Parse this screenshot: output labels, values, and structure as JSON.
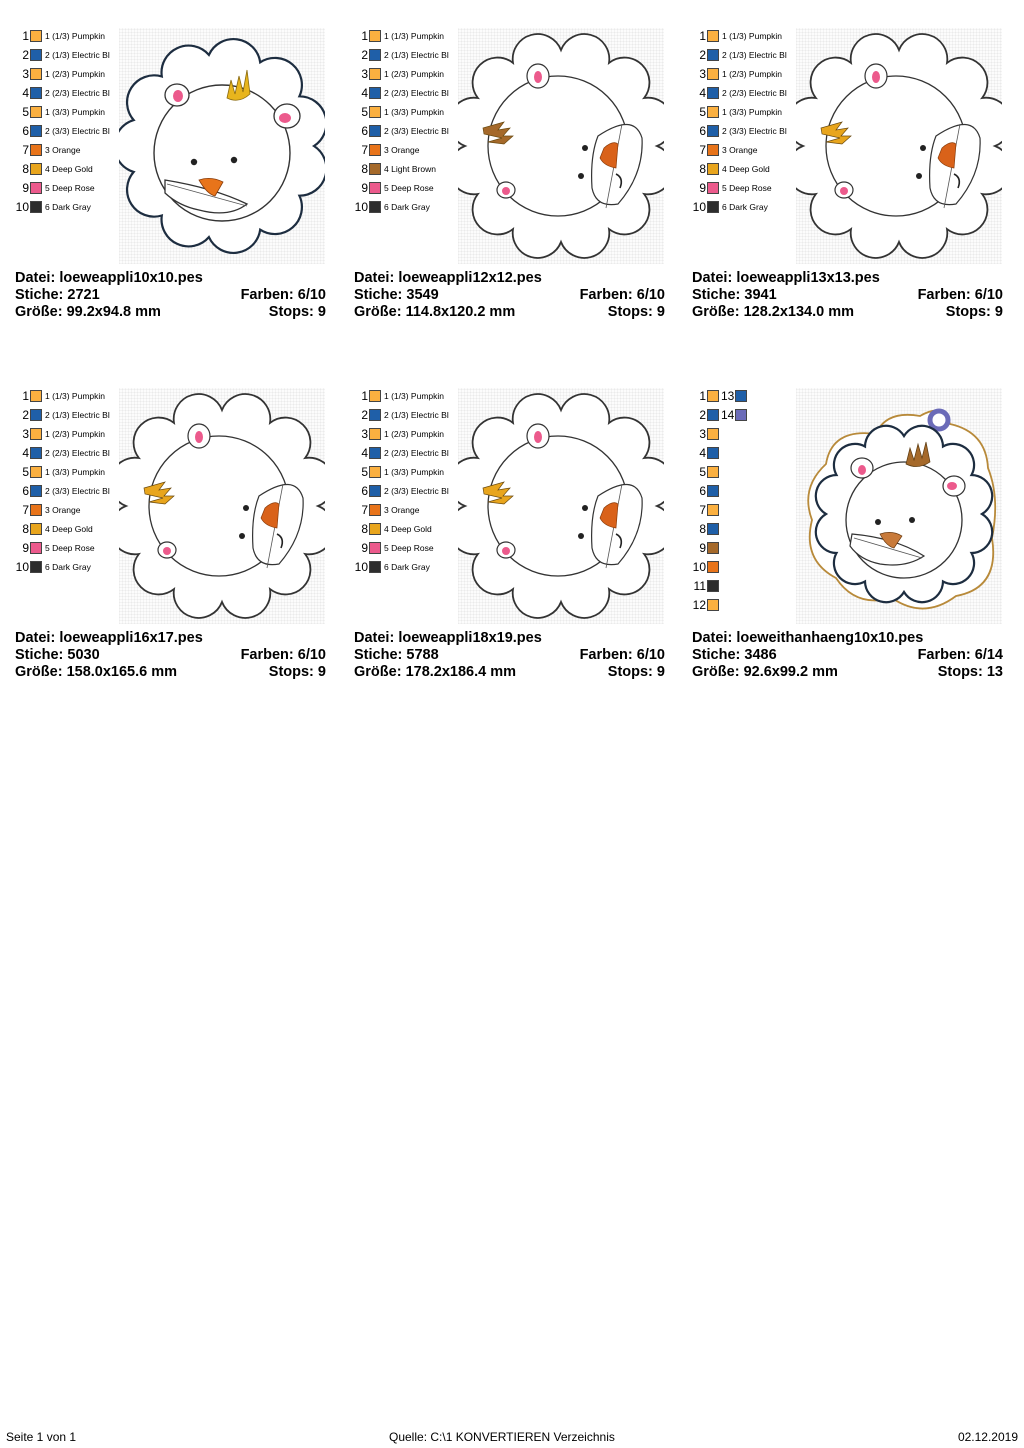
{
  "palettes": {
    "appli": [
      {
        "num": "1",
        "color": "#fbb040",
        "name": "1 (1/3) Pumpkin"
      },
      {
        "num": "2",
        "color": "#1f5fa8",
        "name": "2 (1/3) Electric Bl"
      },
      {
        "num": "3",
        "color": "#fbb040",
        "name": "1 (2/3) Pumpkin"
      },
      {
        "num": "4",
        "color": "#1f5fa8",
        "name": "2 (2/3) Electric Bl"
      },
      {
        "num": "5",
        "color": "#fbb040",
        "name": "1 (3/3) Pumpkin"
      },
      {
        "num": "6",
        "color": "#1f5fa8",
        "name": "2 (3/3) Electric Bl"
      },
      {
        "num": "7",
        "color": "#e8741a",
        "name": "3 Orange"
      },
      {
        "num": "8",
        "color": "#e8a51d",
        "name": "4 Deep Gold"
      },
      {
        "num": "9",
        "color": "#ec5a8c",
        "name": "5 Deep Rose"
      },
      {
        "num": "10",
        "color": "#2d2d2d",
        "name": "6 Dark Gray"
      }
    ],
    "appli_brown": [
      {
        "num": "1",
        "color": "#fbb040",
        "name": "1 (1/3) Pumpkin"
      },
      {
        "num": "2",
        "color": "#1f5fa8",
        "name": "2 (1/3) Electric Bl"
      },
      {
        "num": "3",
        "color": "#fbb040",
        "name": "1 (2/3) Pumpkin"
      },
      {
        "num": "4",
        "color": "#1f5fa8",
        "name": "2 (2/3) Electric Bl"
      },
      {
        "num": "5",
        "color": "#fbb040",
        "name": "1 (3/3) Pumpkin"
      },
      {
        "num": "6",
        "color": "#1f5fa8",
        "name": "2 (3/3) Electric Bl"
      },
      {
        "num": "7",
        "color": "#e8741a",
        "name": "3 Orange"
      },
      {
        "num": "8",
        "color": "#a5692a",
        "name": "4 Light Brown"
      },
      {
        "num": "9",
        "color": "#ec5a8c",
        "name": "5 Deep Rose"
      },
      {
        "num": "10",
        "color": "#2d2d2d",
        "name": "6 Dark Gray"
      }
    ],
    "anhaenger": [
      {
        "num": "1",
        "color": "#fbb040",
        "num2": "13",
        "color2": "#1f5fa8"
      },
      {
        "num": "2",
        "color": "#1f5fa8",
        "num2": "14",
        "color2": "#6b6bb8"
      },
      {
        "num": "3",
        "color": "#fbb040"
      },
      {
        "num": "4",
        "color": "#1f5fa8"
      },
      {
        "num": "5",
        "color": "#fbb040"
      },
      {
        "num": "6",
        "color": "#1f5fa8"
      },
      {
        "num": "7",
        "color": "#fbb040"
      },
      {
        "num": "8",
        "color": "#1f5fa8"
      },
      {
        "num": "9",
        "color": "#a5692a"
      },
      {
        "num": "10",
        "color": "#e8741a"
      },
      {
        "num": "11",
        "color": "#2d2d2d"
      },
      {
        "num": "12",
        "color": "#fbb040"
      }
    ]
  },
  "cards": [
    {
      "palette": "appli",
      "variant": "front",
      "file_label": "Datei:",
      "file": "loeweappli10x10.pes",
      "stitch_label": "Stiche:",
      "stitches": "2721",
      "colors_label": "Farben:",
      "colors": "6/10",
      "size_label": "Größe:",
      "size": "99.2x94.8 mm",
      "stops_label": "Stops:",
      "stops": "9"
    },
    {
      "palette": "appli_brown",
      "variant": "side",
      "mane_color": "#a5692a",
      "file_label": "Datei:",
      "file": "loeweappli12x12.pes",
      "stitch_label": "Stiche:",
      "stitches": "3549",
      "colors_label": "Farben:",
      "colors": "6/10",
      "size_label": "Größe:",
      "size": "114.8x120.2 mm",
      "stops_label": "Stops:",
      "stops": "9"
    },
    {
      "palette": "appli",
      "variant": "side",
      "mane_color": "#e8a51d",
      "file_label": "Datei:",
      "file": "loeweappli13x13.pes",
      "stitch_label": "Stiche:",
      "stitches": "3941",
      "colors_label": "Farben:",
      "colors": "6/10",
      "size_label": "Größe:",
      "size": "128.2x134.0 mm",
      "stops_label": "Stops:",
      "stops": "9"
    },
    {
      "palette": "appli",
      "variant": "side",
      "mane_color": "#e8a51d",
      "file_label": "Datei:",
      "file": "loeweappli16x17.pes",
      "stitch_label": "Stiche:",
      "stitches": "5030",
      "colors_label": "Farben:",
      "colors": "6/10",
      "size_label": "Größe:",
      "size": "158.0x165.6 mm",
      "stops_label": "Stops:",
      "stops": "9"
    },
    {
      "palette": "appli",
      "variant": "side",
      "mane_color": "#e8a51d",
      "file_label": "Datei:",
      "file": "loeweappli18x19.pes",
      "stitch_label": "Stiche:",
      "stitches": "5788",
      "colors_label": "Farben:",
      "colors": "6/10",
      "size_label": "Größe:",
      "size": "178.2x186.4 mm",
      "stops_label": "Stops:",
      "stops": "9"
    },
    {
      "palette": "anhaenger",
      "variant": "tag",
      "file_label": "Datei:",
      "file": "loeweithanhaeng10x10.pes",
      "stitch_label": "Stiche:",
      "stitches": "3486",
      "colors_label": "Farben:",
      "colors": "6/14",
      "size_label": "Größe:",
      "size": "92.6x99.2 mm",
      "stops_label": "Stops:",
      "stops": "13"
    }
  ],
  "footer": {
    "page": "Seite 1 von 1",
    "source": "Quelle: C:\\1 KONVERTIEREN Verzeichnis",
    "date": "02.12.2019"
  }
}
